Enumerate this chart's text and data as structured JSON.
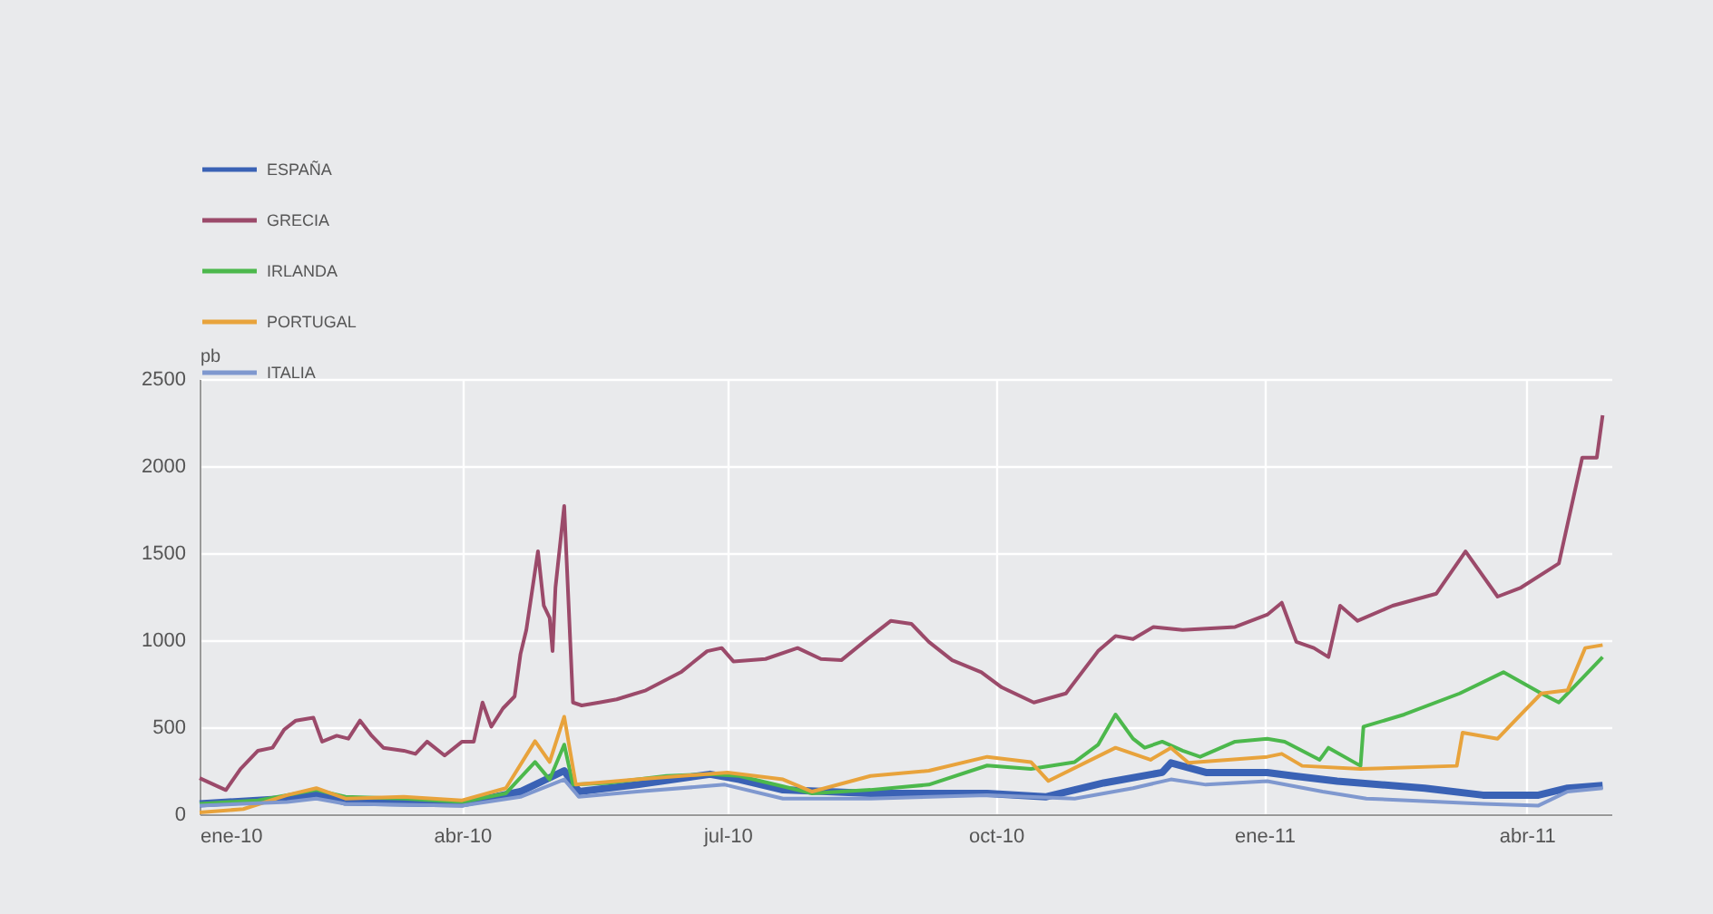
{
  "chart_data": {
    "type": "line",
    "ylabel": "pb",
    "legend": "top left",
    "grid": true,
    "line_style": "solid",
    "marker": "none",
    "xlim": [
      "2010-01-01",
      "2011-04-30"
    ],
    "xticks": [
      {
        "value": "2010-01-01",
        "label": "ene-10"
      },
      {
        "value": "2010-04-01",
        "label": "abr-10"
      },
      {
        "value": "2010-07-01",
        "label": "jul-10"
      },
      {
        "value": "2010-10-01",
        "label": "oct-10"
      },
      {
        "value": "2011-01-01",
        "label": "ene-11"
      },
      {
        "value": "2011-04-01",
        "label": "abr-11"
      }
    ],
    "ylim": [
      0,
      2500
    ],
    "yticks": [
      0,
      500,
      1000,
      1500,
      2000,
      2500
    ],
    "series": [
      {
        "name": "ESPAÑA",
        "color": "#3a62b5",
        "x": [
          "2010-01-01",
          "2010-01-31",
          "2010-02-10",
          "2010-02-20",
          "2010-04-01",
          "2010-04-21",
          "2010-05-06",
          "2010-05-11",
          "2010-05-31",
          "2010-06-25",
          "2010-07-05",
          "2010-07-20",
          "2010-08-19",
          "2010-09-28",
          "2010-10-18",
          "2010-11-07",
          "2010-11-27",
          "2010-11-30",
          "2010-12-12",
          "2011-01-02",
          "2011-01-11",
          "2011-01-26",
          "2011-02-25",
          "2011-03-17",
          "2011-04-05",
          "2011-04-15",
          "2011-04-27"
        ],
        "values": [
          60,
          90,
          120,
          70,
          60,
          130,
          250,
          130,
          170,
          230,
          200,
          140,
          120,
          120,
          100,
          180,
          240,
          295,
          240,
          240,
          220,
          190,
          150,
          110,
          110,
          150,
          165
        ]
      },
      {
        "name": "GRECIA",
        "color": "#9b4a6a",
        "x": [
          "2010-01-01",
          "2010-01-10",
          "2010-01-15",
          "2010-01-21",
          "2010-01-26",
          "2010-01-30",
          "2010-02-03",
          "2010-02-09",
          "2010-02-12",
          "2010-02-17",
          "2010-02-21",
          "2010-02-25",
          "2010-03-01",
          "2010-03-05",
          "2010-03-12",
          "2010-03-16",
          "2010-03-20",
          "2010-03-26",
          "2010-04-01",
          "2010-04-05",
          "2010-04-08",
          "2010-04-11",
          "2010-04-15",
          "2010-04-19",
          "2010-04-21",
          "2010-04-23",
          "2010-04-27",
          "2010-04-29",
          "2010-05-01",
          "2010-05-02",
          "2010-05-03",
          "2010-05-06",
          "2010-05-09",
          "2010-05-12",
          "2010-05-18",
          "2010-05-24",
          "2010-06-03",
          "2010-06-15",
          "2010-06-24",
          "2010-06-29",
          "2010-07-03",
          "2010-07-14",
          "2010-07-25",
          "2010-08-02",
          "2010-08-09",
          "2010-08-18",
          "2010-08-26",
          "2010-09-02",
          "2010-09-08",
          "2010-09-16",
          "2010-09-26",
          "2010-10-03",
          "2010-10-14",
          "2010-10-25",
          "2010-11-05",
          "2010-11-11",
          "2010-11-17",
          "2010-11-24",
          "2010-12-04",
          "2010-12-22",
          "2011-01-02",
          "2011-01-07",
          "2011-01-12",
          "2011-01-18",
          "2011-01-23",
          "2011-01-27",
          "2011-02-02",
          "2011-02-14",
          "2011-03-01",
          "2011-03-11",
          "2011-03-22",
          "2011-03-30",
          "2011-04-12",
          "2011-04-20",
          "2011-04-25",
          "2011-04-27"
        ],
        "values": [
          208,
          139,
          260,
          365,
          382,
          486,
          538,
          555,
          417,
          451,
          434,
          538,
          451,
          382,
          365,
          347,
          417,
          337,
          417,
          417,
          642,
          503,
          608,
          677,
          920,
          1059,
          1510,
          1198,
          1128,
          937,
          1302,
          1771,
          642,
          625,
          642,
          660,
          712,
          816,
          937,
          955,
          878,
          892,
          955,
          892,
          885,
          1007,
          1111,
          1094,
          990,
          885,
          816,
          729,
          642,
          694,
          937,
          1024,
          1007,
          1076,
          1059,
          1076,
          1146,
          1215,
          990,
          955,
          903,
          1198,
          1111,
          1198,
          1267,
          1510,
          1250,
          1302,
          1441,
          2048,
          2048,
          2292
        ]
      },
      {
        "name": "IRLANDA",
        "color": "#4cb84c",
        "x": [
          "2010-01-01",
          "2010-01-21",
          "2010-02-10",
          "2010-02-20",
          "2010-03-12",
          "2010-04-01",
          "2010-04-16",
          "2010-04-26",
          "2010-05-01",
          "2010-05-06",
          "2010-05-09",
          "2010-05-21",
          "2010-06-10",
          "2010-06-25",
          "2010-07-05",
          "2010-07-20",
          "2010-07-30",
          "2010-08-19",
          "2010-09-08",
          "2010-09-28",
          "2010-10-13",
          "2010-10-28",
          "2010-11-05",
          "2010-11-11",
          "2010-11-17",
          "2010-11-21",
          "2010-11-27",
          "2010-12-04",
          "2010-12-10",
          "2010-12-22",
          "2011-01-02",
          "2011-01-08",
          "2011-01-20",
          "2011-01-23",
          "2011-02-03",
          "2011-02-04",
          "2011-02-18",
          "2011-03-09",
          "2011-03-24",
          "2011-04-06",
          "2011-04-12",
          "2011-04-20",
          "2011-04-27"
        ],
        "values": [
          60,
          80,
          140,
          100,
          90,
          70,
          120,
          300,
          200,
          400,
          170,
          180,
          220,
          230,
          220,
          160,
          120,
          140,
          170,
          280,
          260,
          300,
          399,
          573,
          434,
          382,
          417,
          365,
          330,
          417,
          434,
          417,
          313,
          382,
          278,
          503,
          573,
          694,
          816,
          694,
          642,
          781,
          903
        ]
      },
      {
        "name": "PORTUGAL",
        "color": "#e8a33c",
        "x": [
          "2010-01-01",
          "2010-01-16",
          "2010-01-31",
          "2010-02-10",
          "2010-02-20",
          "2010-03-12",
          "2010-04-01",
          "2010-04-16",
          "2010-04-26",
          "2010-05-01",
          "2010-05-06",
          "2010-05-10",
          "2010-05-31",
          "2010-07-01",
          "2010-07-20",
          "2010-07-30",
          "2010-08-19",
          "2010-09-08",
          "2010-09-28",
          "2010-10-13",
          "2010-10-19",
          "2010-11-11",
          "2010-11-23",
          "2010-11-30",
          "2010-12-06",
          "2011-01-02",
          "2011-01-07",
          "2011-01-14",
          "2011-02-03",
          "2011-03-08",
          "2011-03-10",
          "2011-03-22",
          "2011-03-30",
          "2011-04-06",
          "2011-04-15",
          "2011-04-21",
          "2011-04-27"
        ],
        "values": [
          10,
          30,
          110,
          150,
          90,
          100,
          80,
          150,
          420,
          300,
          560,
          170,
          200,
          240,
          200,
          130,
          220,
          250,
          330,
          300,
          191,
          382,
          313,
          382,
          295,
          330,
          347,
          278,
          260,
          278,
          469,
          434,
          573,
          694,
          712,
          955,
          972
        ]
      },
      {
        "name": "ITALIA",
        "color": "#7f98cf",
        "x": [
          "2010-01-01",
          "2010-01-31",
          "2010-02-10",
          "2010-02-20",
          "2010-04-01",
          "2010-04-21",
          "2010-05-06",
          "2010-05-11",
          "2010-05-31",
          "2010-06-30",
          "2010-07-20",
          "2010-08-19",
          "2010-09-28",
          "2010-10-28",
          "2010-11-17",
          "2010-11-30",
          "2010-12-12",
          "2011-01-02",
          "2011-01-21",
          "2011-02-05",
          "2011-03-17",
          "2011-04-05",
          "2011-04-15",
          "2011-04-27"
        ],
        "values": [
          50,
          70,
          90,
          60,
          50,
          100,
          200,
          100,
          130,
          170,
          90,
          90,
          110,
          90,
          150,
          200,
          170,
          190,
          130,
          90,
          60,
          50,
          130,
          150
        ]
      }
    ]
  }
}
